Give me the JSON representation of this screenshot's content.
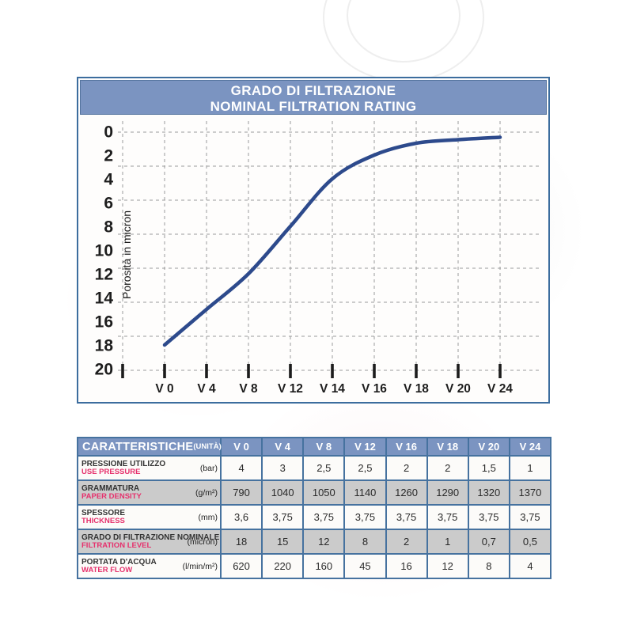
{
  "colors": {
    "header_blue": "#7b94c1",
    "border_blue": "#3c6d9e",
    "line_navy": "#2d4a8c",
    "shaded_row_gray": "#cbcbcb",
    "english_label_red": "#e6306c",
    "grid_gray": "#9b9b9b"
  },
  "chart": {
    "title_line1": "GRADO DI FILTRAZIONE",
    "title_line2": "NOMINAL FILTRATION RATING",
    "y_axis_label": "Porosità  in micron"
  },
  "chart_data": {
    "type": "line",
    "title": "GRADO DI FILTRAZIONE / NOMINAL FILTRATION RATING",
    "categories": [
      "V 0",
      "V 4",
      "V 8",
      "V 12",
      "V 14",
      "V 16",
      "V 18",
      "V 20",
      "V 24"
    ],
    "values": [
      18,
      15,
      12,
      8,
      4,
      2,
      1,
      0.7,
      0.5
    ],
    "xlabel": "",
    "ylabel": "Porosità  in micron",
    "y_ticks": [
      0,
      2,
      4,
      6,
      8,
      10,
      12,
      14,
      16,
      18,
      20
    ],
    "ylim": [
      0,
      20
    ],
    "y_inverted": true,
    "grid": true,
    "legend": false,
    "line_color": "#2d4a8c"
  },
  "table": {
    "header": {
      "title": "CARATTERISTICHE",
      "unit_label": "(UNITÀ)",
      "columns": [
        "V 0",
        "V 4",
        "V 8",
        "V 12",
        "V 16",
        "V 18",
        "V 20",
        "V 24"
      ]
    },
    "rows": [
      {
        "label_it": "PRESSIONE UTILIZZO",
        "label_en": "USE PRESSURE",
        "unit": "(bar)",
        "values": [
          "4",
          "3",
          "2,5",
          "2,5",
          "2",
          "2",
          "1,5",
          "1"
        ],
        "shaded": false
      },
      {
        "label_it": "GRAMMATURA",
        "label_en": "PAPER DENSITY",
        "unit": "(g/m²)",
        "values": [
          "790",
          "1040",
          "1050",
          "1140",
          "1260",
          "1290",
          "1320",
          "1370"
        ],
        "shaded": true
      },
      {
        "label_it": "SPESSORE",
        "label_en": "THICKNESS",
        "unit": "(mm)",
        "values": [
          "3,6",
          "3,75",
          "3,75",
          "3,75",
          "3,75",
          "3,75",
          "3,75",
          "3,75"
        ],
        "shaded": false
      },
      {
        "label_it": "GRADO DI FILTRAZIONE NOMINALE",
        "label_en": "FILTRATION LEVEL",
        "unit": "(micron)",
        "values": [
          "18",
          "15",
          "12",
          "8",
          "2",
          "1",
          "0,7",
          "0,5"
        ],
        "shaded": true
      },
      {
        "label_it": "PORTATA D'ACQUA",
        "label_en": "WATER FLOW",
        "unit": "(l/min/m²)",
        "values": [
          "620",
          "220",
          "160",
          "45",
          "16",
          "12",
          "8",
          "4"
        ],
        "shaded": false
      }
    ]
  }
}
